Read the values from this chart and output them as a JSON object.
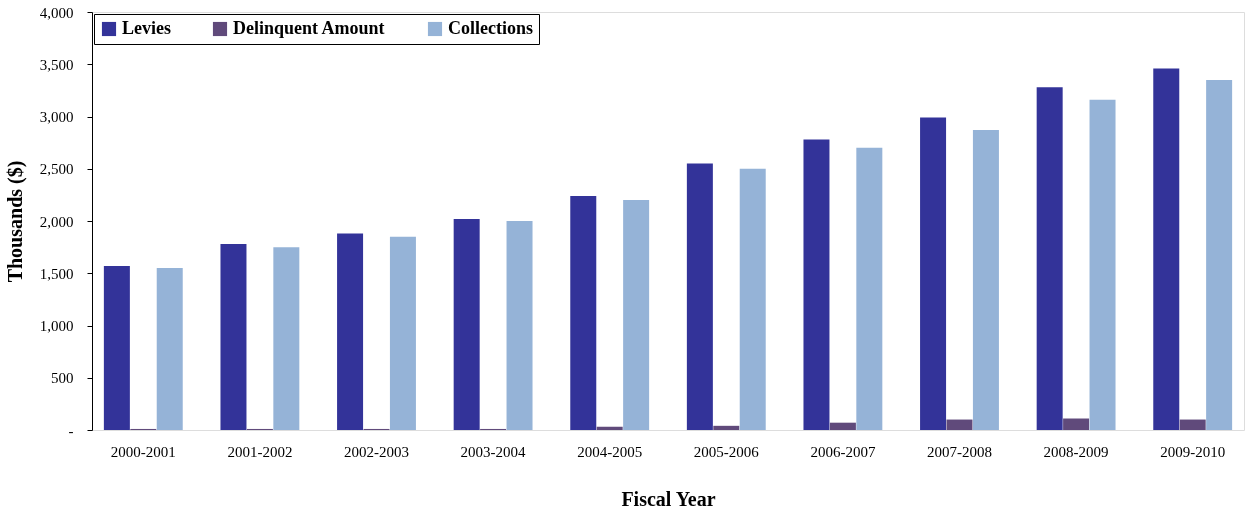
{
  "chart_data": {
    "type": "bar",
    "xlabel": "Fiscal Year",
    "ylabel": "Thousands ($)",
    "categories": [
      "2000-2001",
      "2001-2002",
      "2002-2003",
      "2003-2004",
      "2004-2005",
      "2005-2006",
      "2006-2007",
      "2007-2008",
      "2008-2009",
      "2009-2010"
    ],
    "series": [
      {
        "name": "Levies",
        "color": "#333399",
        "values": [
          1570,
          1780,
          1880,
          2020,
          2240,
          2550,
          2780,
          2990,
          3280,
          3460
        ]
      },
      {
        "name": "Delinquent Amount",
        "color": "#604a7b",
        "values": [
          10,
          10,
          10,
          10,
          30,
          40,
          70,
          100,
          110,
          100
        ]
      },
      {
        "name": "Collections",
        "color": "#95b3d7",
        "values": [
          1550,
          1750,
          1850,
          2000,
          2200,
          2500,
          2700,
          2870,
          3160,
          3350
        ]
      }
    ],
    "ylim": [
      0,
      4000
    ],
    "yticks": [
      {
        "value": 0,
        "label": "-"
      },
      500,
      {
        "value": 1000,
        "label": "1,000"
      },
      {
        "value": 1500,
        "label": "1,500"
      },
      {
        "value": 2000,
        "label": "2,000"
      },
      {
        "value": 2500,
        "label": "2,500"
      },
      {
        "value": 3000,
        "label": "3,000"
      },
      {
        "value": 3500,
        "label": "3,500"
      },
      {
        "value": 4000,
        "label": "4,000"
      }
    ],
    "grid": false,
    "legend": "top left"
  }
}
